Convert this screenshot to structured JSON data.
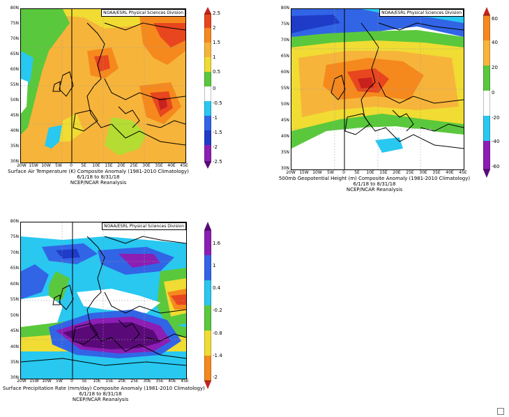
{
  "credit_text": "NOAA/ESRL Physical Sciences Division",
  "lat_labels": [
    "80N",
    "75N",
    "70N",
    "65N",
    "60N",
    "55N",
    "50N",
    "45N",
    "40N",
    "35N",
    "30N"
  ],
  "lon_labels": [
    "20W",
    "15W",
    "10W",
    "5W",
    "0",
    "5E",
    "10E",
    "15E",
    "20E",
    "25E",
    "30E",
    "35E",
    "40E",
    "45E"
  ],
  "panels": [
    {
      "id": "air-temperature",
      "caption_line1": "Surface Air Temperature (K) Composite Anomaly (1981-2010 Climatology)",
      "caption_line2": "6/1/18  to 8/31/18",
      "caption_line3": "NCEP/NCAR Reanalysis",
      "colorbar_labels": [
        "2.5",
        "2",
        "1.5",
        "1",
        "0.5",
        "0",
        "-0.5",
        "-1",
        "-1.5",
        "-2",
        "-2.5"
      ]
    },
    {
      "id": "geopotential-height",
      "caption_line1": "500mb Geopotential Height (m) Composite Anomaly (1981-2010 Climatology)",
      "caption_line2": "6/1/18  to 8/31/18",
      "caption_line3": "NCEP/NCAR Reanalysis",
      "colorbar_labels": [
        "60",
        "40",
        "20",
        "0",
        "-20",
        "-40",
        "-60"
      ]
    },
    {
      "id": "precipitation-rate",
      "caption_line1": "Surface Precipitation Rate (mm/day) Composite Anomaly (1981-2010 Climatology)",
      "caption_line2": "6/1/18  to 8/31/18",
      "caption_line3": "NCEP/NCAR Reanalysis",
      "colorbar_labels": [
        "1.6",
        "1",
        "0.4",
        "-0.2",
        "-0.8",
        "-1.4",
        "-2"
      ]
    }
  ],
  "colors": {
    "dark_red": "#c8221e",
    "red": "#e8461e",
    "orange": "#f5891e",
    "light_orange": "#f7b43a",
    "yellow": "#f0dc32",
    "yellow_green": "#b4dc32",
    "green": "#5ac83c",
    "white": "#ffffff",
    "cyan": "#28c8f0",
    "light_blue": "#5aa0f0",
    "blue": "#3264e6",
    "dark_blue": "#1e3cc8",
    "purple": "#8c1eb4",
    "dark_purple": "#5a0a78"
  }
}
